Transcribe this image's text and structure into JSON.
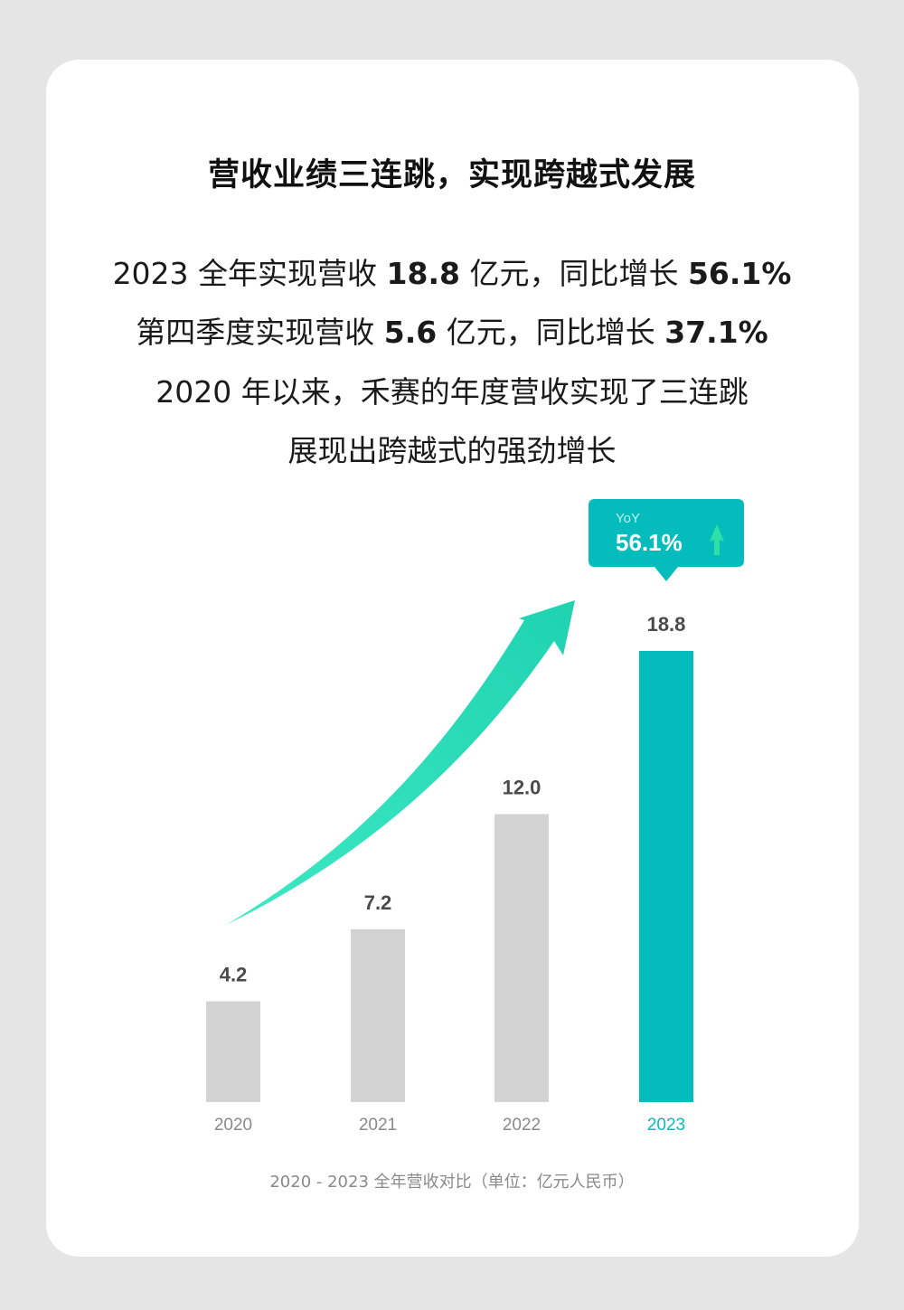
{
  "heading": "营收业绩三连跳，实现跨越式发展",
  "summary": {
    "line1": {
      "pre": "2023 全年实现营收 ",
      "revenue": "18.8",
      "mid": " 亿元，同比增长 ",
      "growth": "56.1%"
    },
    "line2": {
      "pre": "第四季度实现营收 ",
      "revenue": "5.6",
      "mid": " 亿元，同比增长 ",
      "growth": "37.1%"
    },
    "line3": "2020 年以来，禾赛的年度营收实现了三连跳",
    "line4": "展现出跨越式的强劲增长"
  },
  "badge": {
    "label": "YoY",
    "value": "56.1%"
  },
  "colors": {
    "accent": "#05bcbc",
    "bar_default": "#d3d3d3",
    "arrow": "#2ee0b8"
  },
  "chart_data": {
    "type": "bar",
    "categories": [
      "2020",
      "2021",
      "2022",
      "2023"
    ],
    "values": [
      4.2,
      7.2,
      12.0,
      18.8
    ],
    "value_labels": [
      "4.2",
      "7.2",
      "12.0",
      "18.8"
    ],
    "highlight": "2023",
    "ylim": [
      0,
      18.8
    ],
    "caption": "2020 - 2023 全年营收对比（单位：亿元人民币）"
  }
}
